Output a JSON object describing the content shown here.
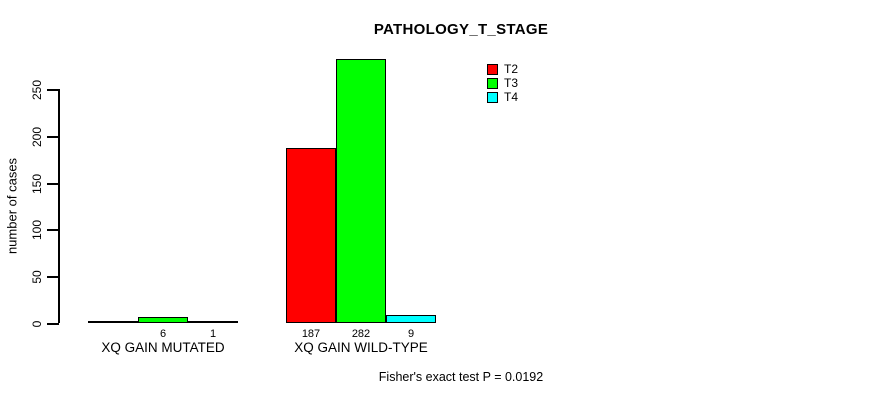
{
  "chart_data": {
    "type": "bar",
    "title": "PATHOLOGY_T_STAGE",
    "ylabel": "number of cases",
    "yticks": [
      0,
      50,
      100,
      150,
      200,
      250
    ],
    "ylim": [
      0,
      284
    ],
    "grid": false,
    "legend_position": "top-right",
    "categories": [
      "XQ GAIN MUTATED",
      "XQ GAIN WILD-TYPE"
    ],
    "series": [
      {
        "name": "T2",
        "color": "#FF0000",
        "values": [
          0,
          187
        ]
      },
      {
        "name": "T3",
        "color": "#00FF00",
        "values": [
          6,
          282
        ]
      },
      {
        "name": "T4",
        "color": "#00FFFF",
        "values": [
          1,
          9
        ]
      }
    ],
    "bar_count_labels": [
      [
        "",
        "6",
        "1"
      ],
      [
        "187",
        "282",
        "9"
      ]
    ],
    "annotation": "Fisher's exact test P = 0.0192"
  }
}
